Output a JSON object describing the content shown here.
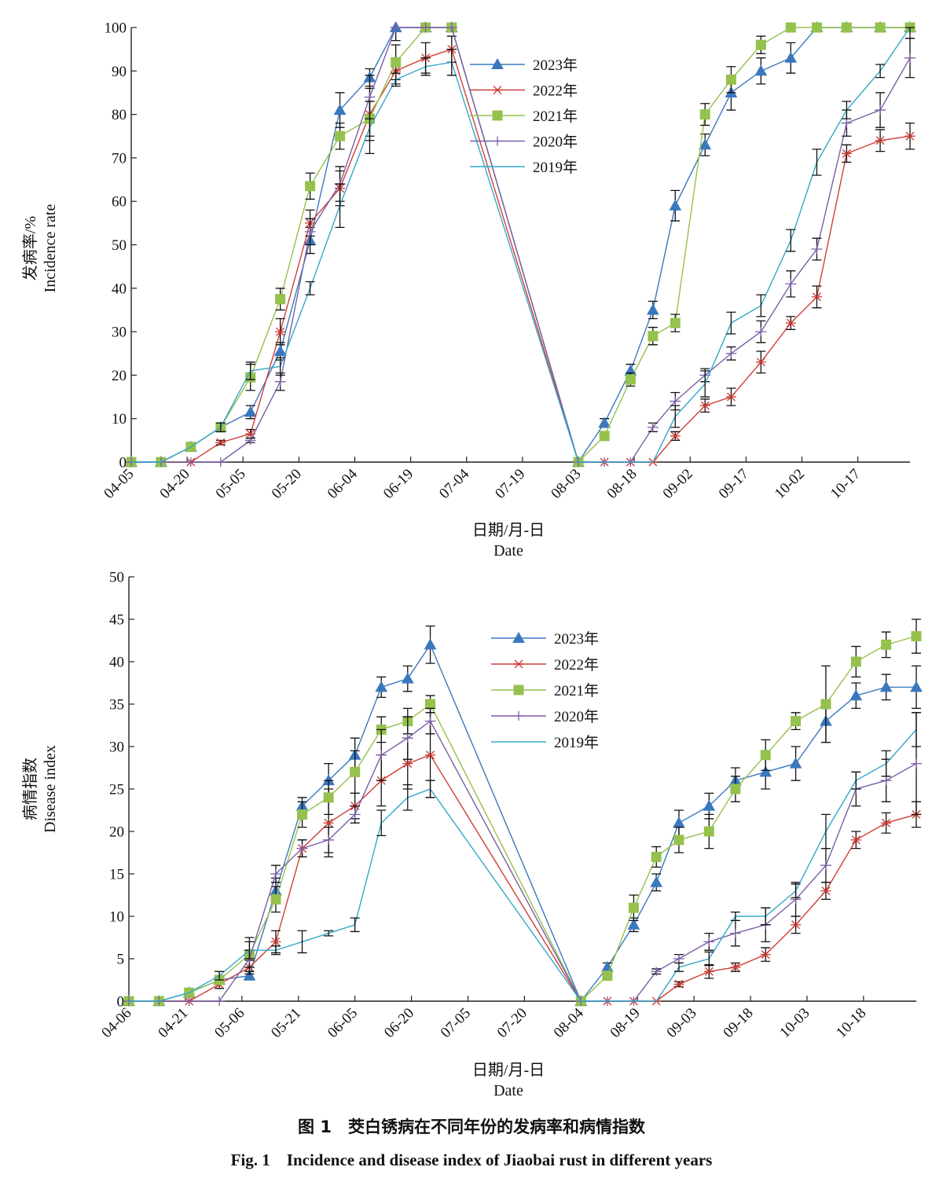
{
  "colors": {
    "2023": "#3a78bd",
    "2022": "#cf3e36",
    "2021": "#95c14d",
    "2020": "#7c5ea6",
    "2019": "#33a7cc",
    "axis": "#222222",
    "errorbar": "#111111"
  },
  "caption": {
    "cn": "图 1　茭白锈病在不同年份的发病率和病情指数",
    "en": "Fig. 1　Incidence and disease index of Jiaobai rust in different years"
  },
  "chart_data": [
    {
      "type": "line",
      "ylabel_cn": "发病率/%",
      "ylabel_en": "Incidence rate",
      "xlabel_cn": "日期/月-日",
      "xlabel_en": "Date",
      "ylim": [
        0,
        100
      ],
      "yticks": [
        0,
        10,
        20,
        30,
        40,
        50,
        60,
        70,
        80,
        90,
        100
      ],
      "xlim": [
        "04-05",
        "10-31"
      ],
      "xticks": [
        "04-05",
        "04-20",
        "05-05",
        "05-20",
        "06-04",
        "06-19",
        "07-04",
        "07-19",
        "08-03",
        "08-18",
        "09-02",
        "09-17",
        "10-02",
        "10-17"
      ],
      "legend_position": "top-center",
      "series": [
        {
          "name": "2023年",
          "marker": "triangle",
          "x": [
            "04-05",
            "04-13",
            "04-21",
            "04-29",
            "05-07",
            "05-15",
            "05-23",
            "05-31",
            "06-08",
            "06-15",
            "06-23",
            "06-30",
            "08-03",
            "08-10",
            "08-17",
            "08-23",
            "08-29",
            "09-06",
            "09-13",
            "09-21",
            "09-29",
            "10-06",
            "10-14",
            "10-23",
            "10-31"
          ],
          "y": [
            0,
            0,
            3.5,
            8,
            11.5,
            25.5,
            51,
            81,
            88.5,
            100,
            100,
            100,
            0,
            9,
            21,
            35,
            59,
            73,
            85,
            90,
            93,
            100,
            100,
            100,
            100
          ],
          "err": [
            0,
            0,
            0.5,
            1,
            1.5,
            2,
            3,
            4,
            2,
            3,
            0,
            0,
            0,
            1,
            1.5,
            2,
            3.5,
            2.5,
            4,
            3,
            3.5,
            0,
            0,
            0,
            0
          ]
        },
        {
          "name": "2022年",
          "marker": "x",
          "x": [
            "04-05",
            "04-13",
            "04-21",
            "04-29",
            "05-07",
            "05-15",
            "05-23",
            "05-31",
            "06-08",
            "06-15",
            "06-23",
            "06-30",
            "08-03",
            "08-10",
            "08-17",
            "08-23",
            "08-29",
            "09-06",
            "09-13",
            "09-21",
            "09-29",
            "10-06",
            "10-14",
            "10-23",
            "10-31"
          ],
          "y": [
            0,
            0,
            0,
            4.5,
            6.5,
            30,
            55,
            63,
            80,
            90,
            93,
            95,
            0,
            0,
            0,
            0,
            6,
            13,
            15,
            23,
            32,
            38,
            71,
            74,
            75
          ],
          "err": [
            0,
            0,
            0,
            0.5,
            1,
            3,
            3,
            4,
            6,
            3,
            3.5,
            3,
            0,
            0,
            0,
            0,
            1,
            1.5,
            2,
            2.5,
            1.5,
            2.5,
            2,
            2.5,
            3
          ]
        },
        {
          "name": "2021年",
          "marker": "square",
          "x": [
            "04-05",
            "04-13",
            "04-21",
            "04-29",
            "05-07",
            "05-15",
            "05-23",
            "05-31",
            "06-08",
            "06-15",
            "06-23",
            "06-30",
            "08-03",
            "08-10",
            "08-17",
            "08-23",
            "08-29",
            "09-06",
            "09-13",
            "09-21",
            "09-29",
            "10-06",
            "10-14",
            "10-23",
            "10-31"
          ],
          "y": [
            0,
            0,
            3.5,
            8,
            19.5,
            37.5,
            63.5,
            75,
            79,
            92,
            100,
            100,
            0,
            6,
            19,
            29,
            32,
            80,
            88,
            96,
            100,
            100,
            100,
            100,
            100
          ],
          "err": [
            0,
            0,
            0.5,
            1,
            3,
            2.5,
            3,
            3,
            4,
            4,
            0,
            0,
            0,
            0.5,
            1.5,
            2,
            2,
            2.5,
            3,
            2,
            0,
            0,
            0,
            0,
            0
          ]
        },
        {
          "name": "2020年",
          "marker": "plus",
          "x": [
            "04-05",
            "04-13",
            "04-21",
            "04-29",
            "05-07",
            "05-15",
            "05-23",
            "05-31",
            "06-08",
            "06-15",
            "06-23",
            "06-30",
            "08-03",
            "08-10",
            "08-17",
            "08-23",
            "08-29",
            "09-06",
            "09-13",
            "09-21",
            "09-29",
            "10-06",
            "10-14",
            "10-23",
            "10-31"
          ],
          "y": [
            0,
            0,
            0,
            0,
            5,
            18.5,
            53,
            64,
            84,
            100,
            100,
            100,
            0,
            0,
            0,
            8,
            14,
            20,
            25,
            30,
            41,
            49,
            78,
            81,
            93
          ],
          "err": [
            0,
            0,
            0,
            0,
            0.5,
            2,
            3,
            4,
            5,
            0,
            0,
            0,
            0,
            0,
            0,
            1,
            2,
            1.5,
            1.5,
            2.5,
            3,
            2.5,
            3,
            4,
            4.5
          ]
        },
        {
          "name": "2019年",
          "marker": "none",
          "x": [
            "04-05",
            "04-13",
            "04-21",
            "04-29",
            "05-07",
            "05-15",
            "05-23",
            "05-31",
            "06-08",
            "06-15",
            "06-23",
            "06-30",
            "08-03",
            "08-10",
            "08-17",
            "08-23",
            "08-29",
            "09-06",
            "09-13",
            "09-21",
            "09-29",
            "10-06",
            "10-14",
            "10-23",
            "10-31"
          ],
          "y": [
            0,
            0,
            3.5,
            8,
            21,
            22,
            40,
            59,
            77,
            88,
            91,
            92,
            0,
            0,
            0,
            0,
            10.5,
            18,
            32,
            36,
            51,
            69,
            81,
            90,
            100
          ],
          "err": [
            0,
            0,
            0,
            1,
            2,
            2,
            1.5,
            5,
            6,
            1.5,
            2,
            3,
            0,
            0,
            0,
            0,
            2.5,
            3,
            2.5,
            2.5,
            2.5,
            3,
            2,
            1.5,
            2.5
          ]
        }
      ]
    },
    {
      "type": "line",
      "ylabel_cn": "病情指数",
      "ylabel_en": "Disease index",
      "xlabel_cn": "日期/月-日",
      "xlabel_en": "Date",
      "ylim": [
        0,
        50
      ],
      "yticks": [
        0,
        5,
        10,
        15,
        20,
        25,
        30,
        35,
        40,
        45,
        50
      ],
      "xlim": [
        "04-06",
        "11-01"
      ],
      "xticks": [
        "04-06",
        "04-21",
        "05-06",
        "05-21",
        "06-05",
        "06-20",
        "07-05",
        "07-20",
        "08-04",
        "08-19",
        "09-03",
        "09-18",
        "10-03",
        "10-18"
      ],
      "legend_position": "top-center",
      "series": [
        {
          "name": "2023年",
          "marker": "triangle",
          "x": [
            "04-06",
            "04-14",
            "04-22",
            "04-30",
            "05-08",
            "05-15",
            "05-22",
            "05-29",
            "06-05",
            "06-12",
            "06-19",
            "06-25",
            "08-04",
            "08-11",
            "08-18",
            "08-24",
            "08-30",
            "09-07",
            "09-14",
            "09-22",
            "09-30",
            "10-08",
            "10-16",
            "10-24",
            "11-01"
          ],
          "y": [
            0,
            0,
            1,
            2.5,
            3,
            13,
            23,
            26,
            29,
            37,
            38,
            42,
            0,
            4,
            9,
            14,
            21,
            23,
            26,
            27,
            28,
            33,
            36,
            37,
            37
          ],
          "err": [
            0,
            0,
            0.3,
            0.5,
            0.5,
            1.5,
            1,
            2,
            2,
            1.2,
            1.5,
            2.2,
            0,
            0.5,
            0.8,
            1,
            1.5,
            1.5,
            1.5,
            2,
            2,
            2.5,
            1.5,
            1.5,
            2.5
          ]
        },
        {
          "name": "2022年",
          "marker": "x",
          "x": [
            "04-06",
            "04-14",
            "04-22",
            "04-30",
            "05-08",
            "05-15",
            "05-22",
            "05-29",
            "06-05",
            "06-12",
            "06-19",
            "06-25",
            "08-04",
            "08-11",
            "08-18",
            "08-24",
            "08-30",
            "09-07",
            "09-14",
            "09-22",
            "09-30",
            "10-08",
            "10-16",
            "10-24",
            "11-01"
          ],
          "y": [
            0,
            0,
            0,
            2,
            4,
            7,
            18,
            21,
            23,
            26,
            28,
            29,
            0,
            0,
            0,
            0,
            2,
            3.5,
            4,
            5.5,
            9,
            13,
            19,
            21,
            22
          ],
          "err": [
            0,
            0,
            0,
            0.5,
            0.8,
            1.3,
            1,
            4,
            1.5,
            3,
            3,
            5,
            0,
            0,
            0,
            0,
            0.3,
            0.8,
            0.5,
            0.8,
            1,
            1,
            1,
            1.2,
            1.5
          ]
        },
        {
          "name": "2021年",
          "marker": "square",
          "x": [
            "04-06",
            "04-14",
            "04-22",
            "04-30",
            "05-08",
            "05-15",
            "05-22",
            "05-29",
            "06-05",
            "06-12",
            "06-19",
            "06-25",
            "08-04",
            "08-11",
            "08-18",
            "08-24",
            "08-30",
            "09-07",
            "09-14",
            "09-22",
            "09-30",
            "10-08",
            "10-16",
            "10-24",
            "11-01"
          ],
          "y": [
            0,
            0,
            1,
            2.5,
            5.5,
            12,
            22,
            24,
            27,
            32,
            33,
            35,
            0,
            3,
            11,
            17,
            19,
            20,
            25,
            29,
            33,
            35,
            40,
            42,
            43
          ],
          "err": [
            0,
            0,
            0.3,
            0.5,
            2,
            1.5,
            1.5,
            2,
            2.5,
            1.5,
            1.5,
            1,
            0,
            0.5,
            1.5,
            1.2,
            1.5,
            2,
            1.5,
            1.8,
            1,
            4.5,
            1.8,
            1.5,
            2
          ]
        },
        {
          "name": "2020年",
          "marker": "plus",
          "x": [
            "04-06",
            "04-14",
            "04-22",
            "04-30",
            "05-08",
            "05-15",
            "05-22",
            "05-29",
            "06-05",
            "06-12",
            "06-19",
            "06-25",
            "08-04",
            "08-11",
            "08-18",
            "08-24",
            "08-30",
            "09-07",
            "09-14",
            "09-22",
            "09-30",
            "10-08",
            "10-16",
            "10-24",
            "11-01"
          ],
          "y": [
            0,
            0,
            0,
            0,
            5,
            15,
            18,
            19,
            22,
            29,
            31,
            33,
            0,
            0,
            0,
            3.5,
            5,
            7,
            8,
            9,
            12,
            16,
            25,
            26,
            28
          ],
          "err": [
            0,
            0,
            0,
            0,
            1,
            1,
            1,
            1.5,
            1,
            3,
            2.5,
            1.5,
            0,
            0,
            0,
            0.3,
            0.5,
            1,
            1.5,
            2,
            2,
            2,
            2,
            2.5,
            6
          ]
        },
        {
          "name": "2019年",
          "marker": "none",
          "x": [
            "04-06",
            "04-14",
            "04-22",
            "04-30",
            "05-08",
            "05-15",
            "05-22",
            "05-29",
            "06-05",
            "06-12",
            "06-19",
            "06-25",
            "08-04",
            "08-11",
            "08-18",
            "08-24",
            "08-30",
            "09-07",
            "09-14",
            "09-22",
            "09-30",
            "10-08",
            "10-16",
            "10-24",
            "11-01"
          ],
          "y": [
            0,
            0,
            1,
            3,
            6,
            6,
            7,
            8,
            9,
            21,
            24,
            25,
            0,
            0,
            0,
            0,
            4,
            5,
            10,
            10,
            13,
            20,
            26,
            28,
            32
          ],
          "err": [
            0,
            0,
            0,
            0.5,
            1,
            0.5,
            1.3,
            0.3,
            0.8,
            1.5,
            1.5,
            1,
            0,
            0,
            0,
            0,
            0.5,
            0.8,
            0.5,
            1,
            0.8,
            2,
            1,
            1.5,
            2
          ]
        }
      ]
    }
  ]
}
